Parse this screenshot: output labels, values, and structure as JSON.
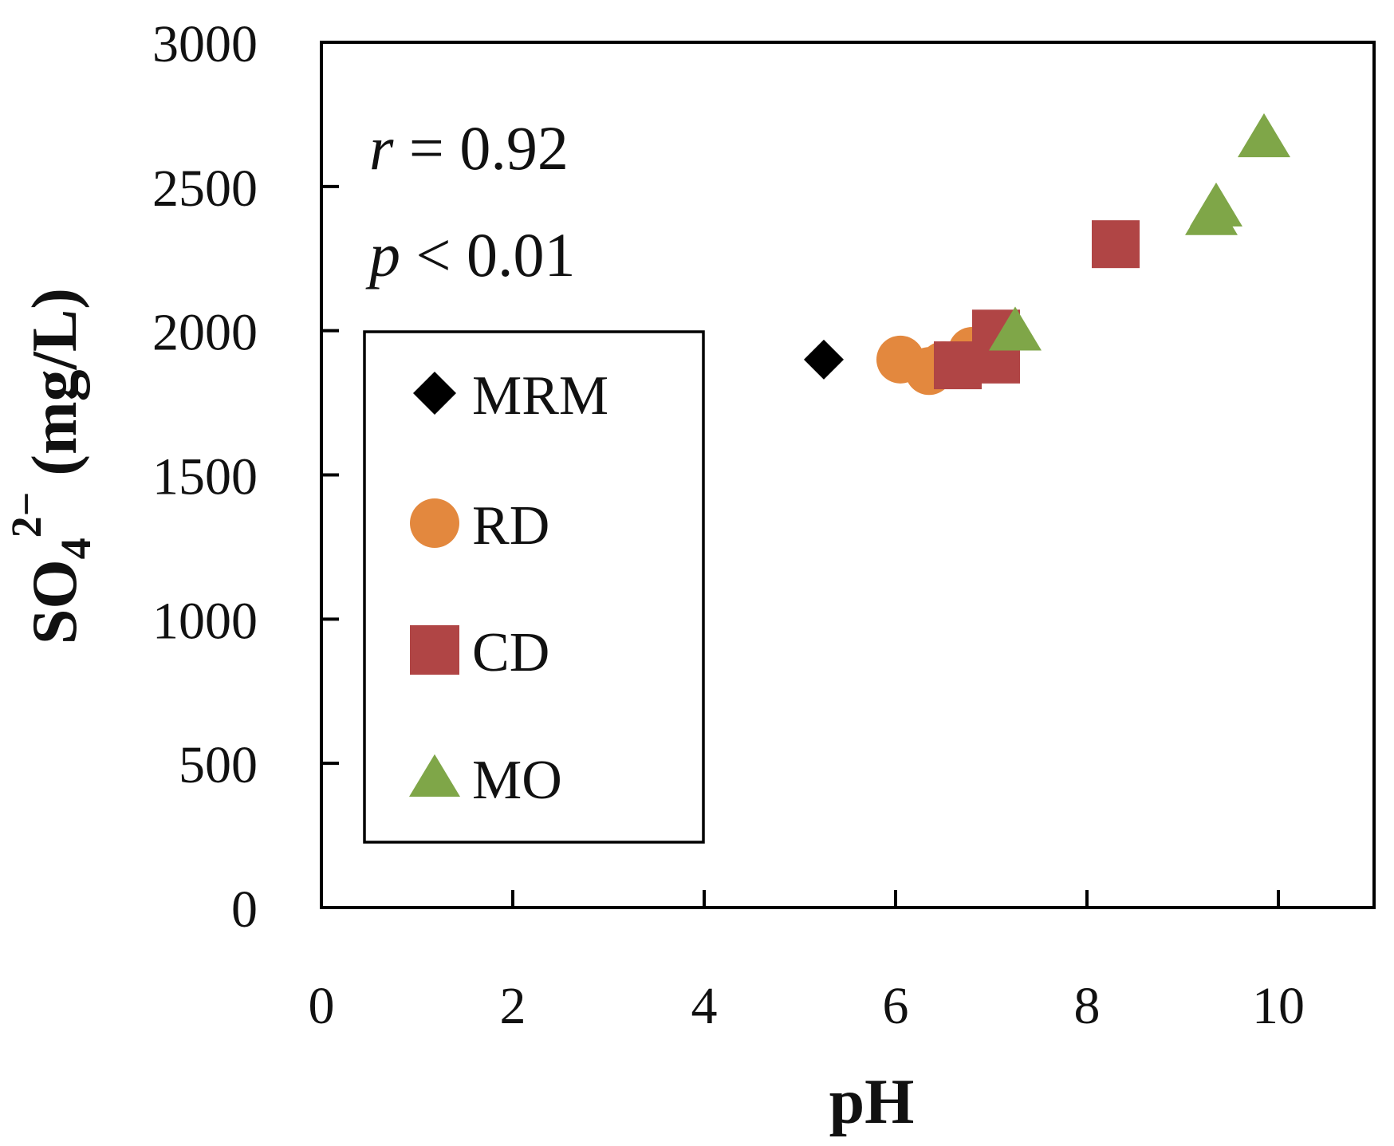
{
  "chart_data": {
    "type": "scatter",
    "title": "",
    "xlabel": "pH",
    "ylabel": {
      "main": "SO",
      "subscript": "4",
      "superscript": "2−",
      "unit": " (mg/L)"
    },
    "xlim": [
      0,
      11
    ],
    "ylim": [
      0,
      3000
    ],
    "xticks": [
      0,
      2,
      4,
      6,
      8,
      10
    ],
    "yticks": [
      0,
      500,
      1000,
      1500,
      2000,
      2500,
      3000
    ],
    "annotations": {
      "r_symbol": "r",
      "r_text": " = 0.92",
      "p_symbol": "p",
      "p_text": " < 0.01"
    },
    "legend_position": "left-middle",
    "series": [
      {
        "name": "MRM",
        "marker": "diamond",
        "color": "#000000",
        "points": [
          {
            "x": 5.25,
            "y": 1900
          }
        ]
      },
      {
        "name": "RD",
        "marker": "circle",
        "color": "#E3883E",
        "points": [
          {
            "x": 6.05,
            "y": 1900
          },
          {
            "x": 6.35,
            "y": 1860
          },
          {
            "x": 6.5,
            "y": 1880
          },
          {
            "x": 6.8,
            "y": 1930
          }
        ]
      },
      {
        "name": "CD",
        "marker": "square",
        "color": "#B04545",
        "points": [
          {
            "x": 6.65,
            "y": 1880
          },
          {
            "x": 7.05,
            "y": 1990
          },
          {
            "x": 7.05,
            "y": 1900
          },
          {
            "x": 8.3,
            "y": 2300
          }
        ]
      },
      {
        "name": "MO",
        "marker": "triangle",
        "color": "#7FA648",
        "points": [
          {
            "x": 7.25,
            "y": 2000
          },
          {
            "x": 9.3,
            "y": 2400
          },
          {
            "x": 9.35,
            "y": 2430
          },
          {
            "x": 9.85,
            "y": 2670
          }
        ]
      }
    ]
  }
}
